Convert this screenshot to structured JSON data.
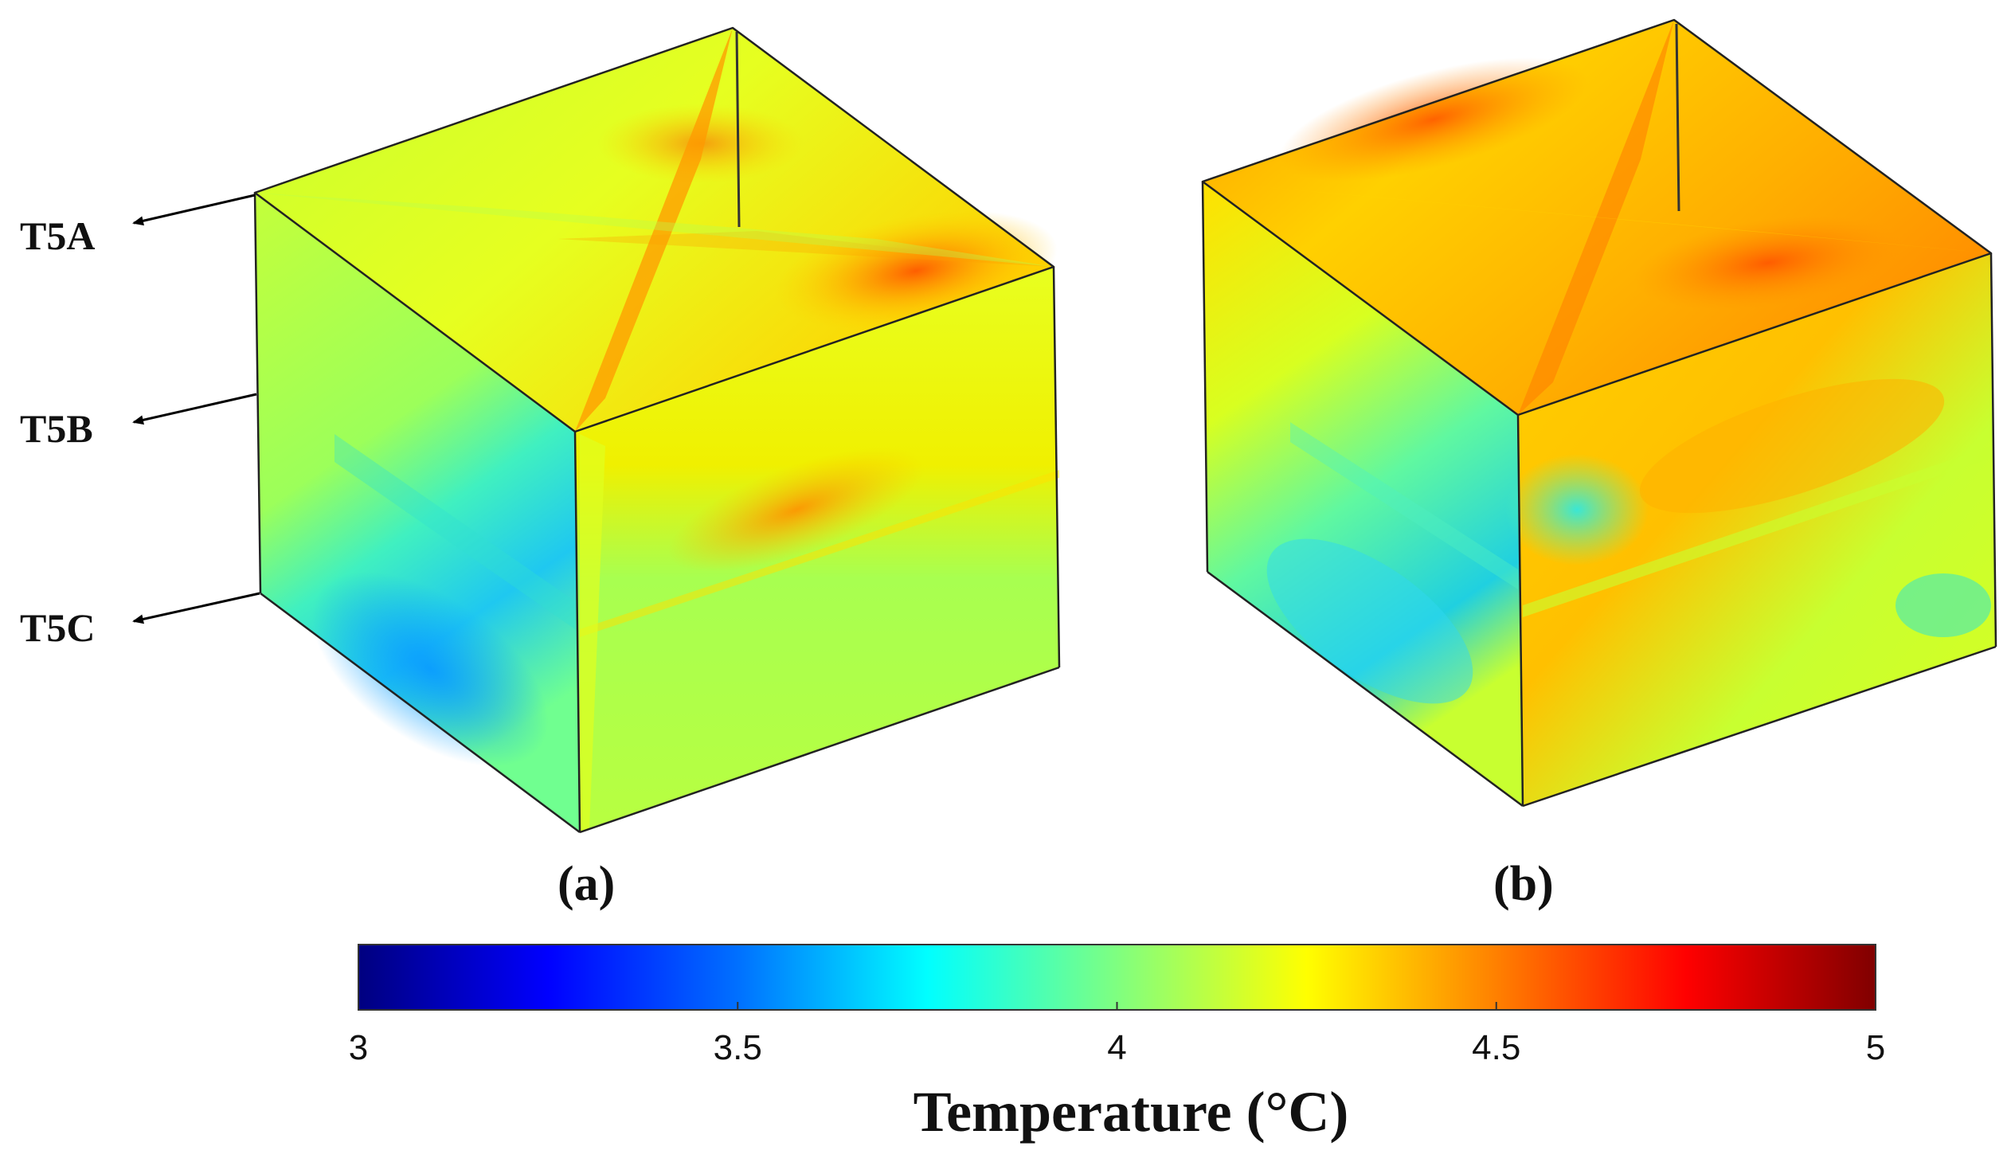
{
  "panels": [
    {
      "id": "a",
      "caption": "(a)"
    },
    {
      "id": "b",
      "caption": "(b)"
    }
  ],
  "plane_labels": [
    "T5A",
    "T5B",
    "T5C"
  ],
  "colorbar": {
    "title": "Temperature (°C)",
    "min": 3,
    "max": 5,
    "ticks": [
      "3",
      "3.5",
      "4",
      "4.5",
      "5"
    ],
    "colormap": "jet",
    "colors": [
      "#00007f",
      "#0000ff",
      "#007fff",
      "#00ffff",
      "#7fff7f",
      "#ffff00",
      "#ff7f00",
      "#ff0000",
      "#7f0000"
    ]
  }
}
